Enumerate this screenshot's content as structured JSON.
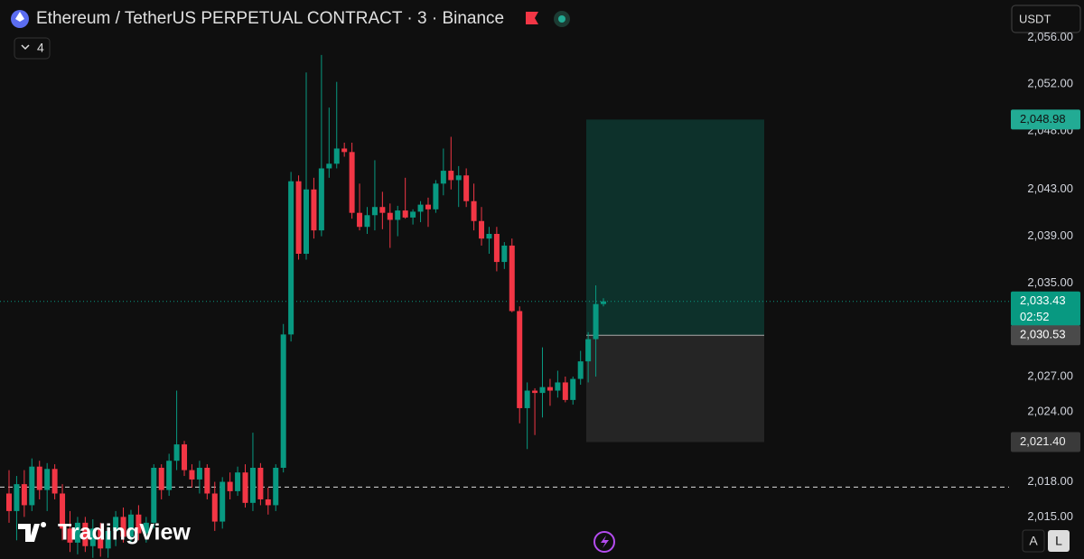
{
  "header": {
    "title": "Ethereum / TetherUS PERPETUAL CONTRACT · 3 · Binance",
    "legend_toggle": "4",
    "currency": "USDT",
    "buttons": [
      "A",
      "L"
    ],
    "logo": "TradingView"
  },
  "chart_data": {
    "type": "candlestick",
    "up_color": "#089981",
    "down_color": "#f23645",
    "ylim": [
      2011.4,
      2059.2
    ],
    "yticks": [
      {
        "value": 2056,
        "label": "2,056.00"
      },
      {
        "value": 2052,
        "label": "2,052.00"
      },
      {
        "value": 2048,
        "label": "2,048.00"
      },
      {
        "value": 2043,
        "label": "2,043.00"
      },
      {
        "value": 2039,
        "label": "2,039.00"
      },
      {
        "value": 2035,
        "label": "2,035.00"
      },
      {
        "value": 2027,
        "label": "2,027.00"
      },
      {
        "value": 2024,
        "label": "2,024.00"
      },
      {
        "value": 2018,
        "label": "2,018.00"
      },
      {
        "value": 2015,
        "label": "2,015.00"
      }
    ],
    "open": [
      2017,
      2015.5,
      2017.8,
      2016,
      2019.3,
      2017.3,
      2019.1,
      2017,
      2014,
      2012.8,
      2014.5,
      2012.5,
      2014,
      2012.3,
      2013.8,
      2015,
      2013.3,
      2015.2,
      2013.6,
      2014.5,
      2019.2,
      2017.3,
      2019.8,
      2021.2,
      2019,
      2018.2,
      2019.2,
      2017,
      2014.6,
      2018,
      2017.2,
      2018.8,
      2016.2,
      2019.2,
      2016.5,
      2016,
      2019.2,
      2030.6,
      2043.7,
      2037.5,
      2043,
      2039.5,
      2044.8,
      2045.2,
      2046.5,
      2046.2,
      2041,
      2039.8,
      2040.8,
      2041.5,
      2041,
      2040.4,
      2041.2,
      2040.6,
      2041.1,
      2041.7,
      2041.3,
      2043.5,
      2044.6,
      2043.8,
      2044.2,
      2042,
      2040.3,
      2038.8,
      2039.2,
      2036.8,
      2038.2,
      2032.6,
      2024.3,
      2025.8,
      2025.6,
      2026.1,
      2025.8,
      2026.5,
      2025,
      2026.8,
      2028.3,
      2030.2,
      2033.2
    ],
    "high": [
      2019,
      2018.5,
      2019,
      2020,
      2019.8,
      2019.6,
      2019.5,
      2017.8,
      2015.5,
      2015,
      2015,
      2014.8,
      2014.5,
      2014.2,
      2015.5,
      2015.8,
      2015.6,
      2016,
      2015,
      2019.5,
      2019.5,
      2020.4,
      2025.8,
      2021.5,
      2019.5,
      2019.8,
      2019.5,
      2018,
      2018.4,
      2018.8,
      2019.3,
      2019.5,
      2022.2,
      2019.6,
      2017.5,
      2019.5,
      2031.5,
      2044.5,
      2044.2,
      2053,
      2044,
      2054.5,
      2050,
      2052.2,
      2047,
      2047,
      2043.5,
      2041.5,
      2045.5,
      2042.8,
      2041.8,
      2041.6,
      2044,
      2041.3,
      2042,
      2042.3,
      2043.8,
      2046.5,
      2047.5,
      2045,
      2044.8,
      2043.5,
      2041.5,
      2039.8,
      2039.8,
      2038.5,
      2038.8,
      2033,
      2026.5,
      2026,
      2029.5,
      2026.8,
      2027.5,
      2027,
      2027,
      2029.2,
      2030.8,
      2034.8,
      2033.7
    ],
    "low": [
      2014.5,
      2013,
      2015,
      2015.5,
      2016.5,
      2015.5,
      2016.5,
      2013,
      2012,
      2011.8,
      2012,
      2011.5,
      2011.6,
      2011.5,
      2012.5,
      2012.8,
      2012.8,
      2013,
      2012.8,
      2014,
      2016.5,
      2016.8,
      2019,
      2018.5,
      2017.5,
      2017,
      2016.5,
      2013.8,
      2014,
      2016.5,
      2016.8,
      2015.8,
      2015.5,
      2016,
      2015.2,
      2015.5,
      2018.8,
      2030,
      2037,
      2037,
      2038.8,
      2039,
      2044,
      2044.8,
      2045.8,
      2040.5,
      2039.5,
      2039.2,
      2039.5,
      2039.6,
      2038,
      2039,
      2040.5,
      2040,
      2040.2,
      2039.8,
      2041,
      2042.5,
      2043,
      2041.5,
      2041.5,
      2039.5,
      2038.2,
      2037.5,
      2036,
      2036.2,
      2032.5,
      2023,
      2020.8,
      2022,
      2023.5,
      2024.5,
      2025.2,
      2024.8,
      2024.6,
      2026.3,
      2026.5,
      2027,
      2033
    ],
    "close": [
      2015.5,
      2017.8,
      2016,
      2019.3,
      2017.3,
      2019.1,
      2017,
      2014,
      2012.8,
      2014.5,
      2012.5,
      2014,
      2012.3,
      2013.8,
      2015,
      2013.3,
      2015.2,
      2013.6,
      2014.5,
      2019.2,
      2017.3,
      2019.8,
      2021.2,
      2019,
      2018.2,
      2019.2,
      2017,
      2014.6,
      2018,
      2017.2,
      2018.8,
      2016.2,
      2019.2,
      2016.5,
      2016,
      2019.2,
      2030.6,
      2043.7,
      2037.5,
      2043,
      2039.5,
      2044.8,
      2045.2,
      2046.5,
      2046.2,
      2041,
      2039.8,
      2040.8,
      2041.5,
      2041,
      2040.4,
      2041.2,
      2040.6,
      2041.1,
      2041.7,
      2041.3,
      2043.5,
      2044.6,
      2043.8,
      2044.2,
      2042,
      2040.3,
      2038.8,
      2039.2,
      2036.8,
      2038.2,
      2032.6,
      2024.3,
      2025.8,
      2025.6,
      2026.1,
      2025.8,
      2026.5,
      2025,
      2026.8,
      2028.3,
      2030.2,
      2033.2,
      2033.43
    ],
    "horizontal_line": 2017.55,
    "position": {
      "target": 2048.98,
      "target_label": "2,048.98",
      "entry": 2030.53,
      "entry_label": "2,030.53",
      "stop": 2021.4,
      "stop_label": "2,021.40"
    },
    "last_price": {
      "value": 2033.43,
      "label": "2,033.43",
      "countdown": "02:52"
    }
  }
}
